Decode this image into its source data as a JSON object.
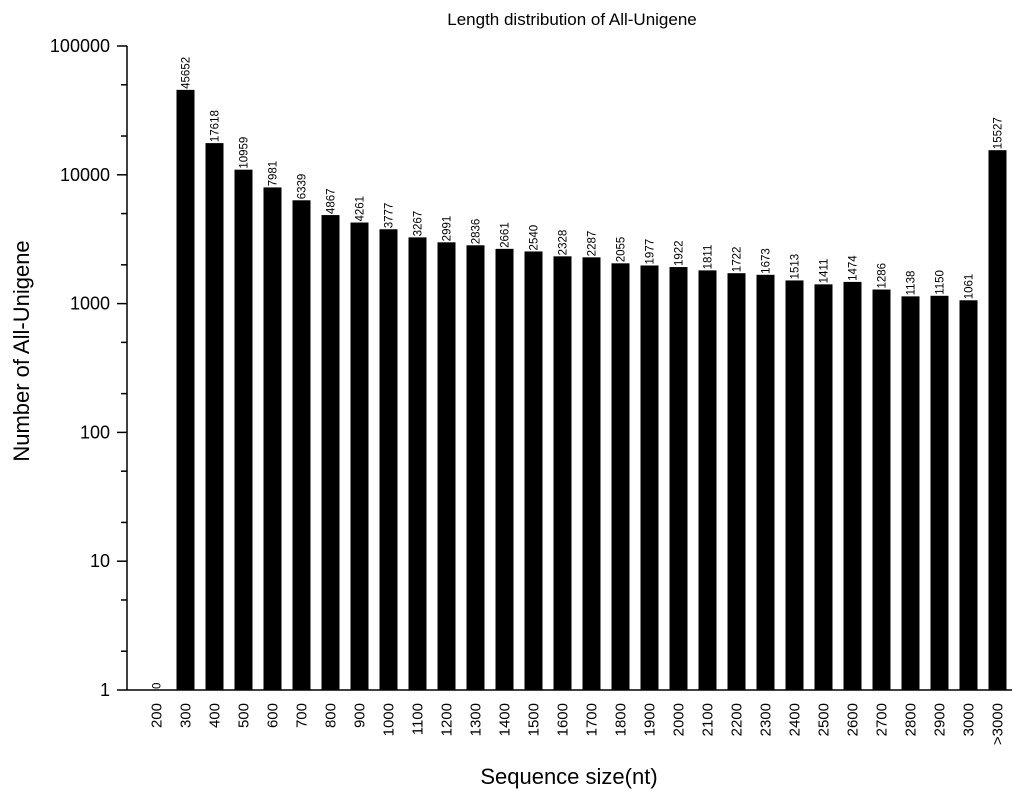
{
  "chart_data": {
    "type": "bar",
    "title": "Length distribution of All-Unigene",
    "xlabel": "Sequence size(nt)",
    "ylabel": "Number of All-Unigene",
    "yscale": "log",
    "ylim": [
      1,
      100000
    ],
    "yticks": [
      "1",
      "10",
      "100",
      "1000",
      "10000",
      "100000"
    ],
    "grid": false,
    "legend": "none",
    "bar_color": "#000000",
    "categories": [
      "200",
      "300",
      "400",
      "500",
      "600",
      "700",
      "800",
      "900",
      "1000",
      "1100",
      "1200",
      "1300",
      "1400",
      "1500",
      "1600",
      "1700",
      "1800",
      "1900",
      "2000",
      "2100",
      "2200",
      "2300",
      "2400",
      "2500",
      "2600",
      "2700",
      "2800",
      "2900",
      "3000",
      ">3000"
    ],
    "values": [
      0,
      45652,
      17618,
      10959,
      7981,
      6339,
      4867,
      4261,
      3777,
      3267,
      2991,
      2836,
      2661,
      2540,
      2328,
      2287,
      2055,
      1977,
      1922,
      1811,
      1722,
      1673,
      1513,
      1411,
      1474,
      1286,
      1138,
      1150,
      1061,
      15527
    ],
    "data_labels": [
      "0",
      "45652",
      "17618",
      "10959",
      "7981",
      "6339",
      "4867",
      "4261",
      "3777",
      "3267",
      "2991",
      "2836",
      "2661",
      "2540",
      "2328",
      "2287",
      "2055",
      "1977",
      "1922",
      "1811",
      "1722",
      "1673",
      "1513",
      "1411",
      "1474",
      "1286",
      "1138",
      "1150",
      "1061",
      "15527"
    ]
  }
}
